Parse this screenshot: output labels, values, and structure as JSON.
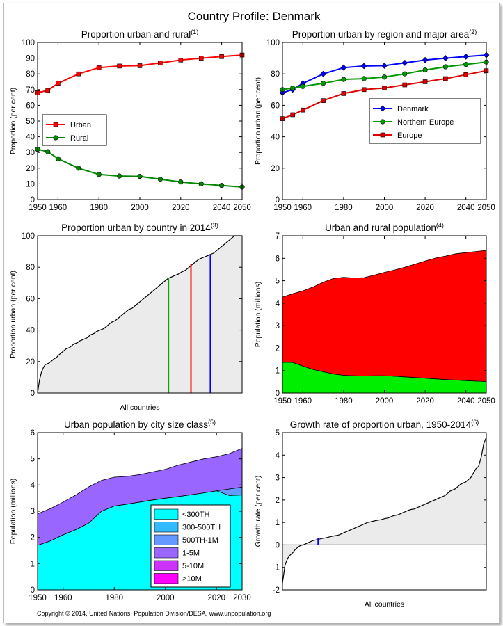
{
  "page": {
    "title": "Country Profile: Denmark",
    "copyright": "Copyright © 2014, United Nations, Population Division/DESA, www.unpopulation.org"
  },
  "chart_data": [
    {
      "id": "c1",
      "type": "line",
      "title": "Proportion urban and rural",
      "footnote": "(1)",
      "ylabel": "Proportion (per cent)",
      "xlabel": "",
      "x": [
        1950,
        1955,
        1960,
        1970,
        1980,
        1990,
        2000,
        2010,
        2020,
        2030,
        2040,
        2050
      ],
      "xlim": [
        1950,
        2050
      ],
      "ylim": [
        0,
        100
      ],
      "xticks": [
        1950,
        1960,
        1980,
        2000,
        2020,
        2040,
        2050
      ],
      "yticks": [
        0,
        10,
        20,
        30,
        40,
        50,
        60,
        70,
        80,
        90,
        100
      ],
      "legend_position": "middle-left",
      "series": [
        {
          "name": "Urban",
          "color": "#ff0000",
          "marker": "square",
          "values": [
            68,
            69.5,
            74,
            80,
            84,
            85,
            85.2,
            87,
            88.8,
            90,
            91,
            92
          ]
        },
        {
          "name": "Rural",
          "color": "#008800",
          "marker": "circle",
          "values": [
            32,
            30.5,
            26,
            20,
            16,
            15,
            14.8,
            13,
            11.2,
            10,
            9,
            8
          ]
        }
      ]
    },
    {
      "id": "c2",
      "type": "line",
      "title": "Proportion urban by region and major area",
      "footnote": "(2)",
      "ylabel": "Proportion urban (per cent)",
      "xlabel": "",
      "x": [
        1950,
        1955,
        1960,
        1970,
        1980,
        1990,
        2000,
        2010,
        2020,
        2030,
        2040,
        2050
      ],
      "xlim": [
        1950,
        2050
      ],
      "ylim": [
        0,
        100
      ],
      "xticks": [
        1950,
        1960,
        1980,
        2000,
        2020,
        2040,
        2050
      ],
      "yticks": [
        0,
        20,
        40,
        60,
        80,
        100
      ],
      "legend_position": "middle-right",
      "series": [
        {
          "name": "Denmark",
          "color": "#0000ff",
          "marker": "diamond",
          "values": [
            68,
            70,
            74,
            80,
            84,
            85,
            85.2,
            87,
            88.8,
            90,
            91,
            92
          ]
        },
        {
          "name": "Northern Europe",
          "color": "#009900",
          "marker": "circle",
          "values": [
            70,
            71,
            72,
            74,
            76.5,
            77,
            78,
            80,
            82.5,
            84.5,
            86,
            87.5
          ]
        },
        {
          "name": "Europe",
          "color": "#dd0000",
          "marker": "square",
          "values": [
            51.5,
            54,
            57,
            63,
            67.5,
            70,
            71,
            73,
            75,
            77,
            79.5,
            82
          ]
        }
      ]
    },
    {
      "id": "c3",
      "type": "area",
      "title": "Proportion urban by country in 2014",
      "footnote": "(3)",
      "ylabel": "Proportion urban (per cent)",
      "xlabel": "All countries",
      "ylim": [
        0,
        100
      ],
      "yticks": [
        0,
        20,
        40,
        60,
        80,
        100
      ],
      "fill": "#ebebeb",
      "values": [
        0,
        8,
        13,
        16,
        18,
        18.5,
        19,
        20,
        21,
        22,
        22.5,
        24,
        25,
        26,
        27,
        28,
        28.5,
        29,
        30,
        31,
        31.5,
        32,
        33,
        33.5,
        34,
        34.5,
        35,
        36,
        37,
        37.5,
        38,
        39,
        39.5,
        40,
        40.5,
        41,
        42,
        43,
        44,
        45,
        45.5,
        46,
        47,
        48,
        49,
        50,
        51,
        52,
        53,
        53.5,
        54,
        55,
        56,
        57,
        58,
        59,
        60,
        61,
        62,
        63,
        64,
        65,
        66,
        67,
        68,
        69,
        70,
        71,
        72,
        73,
        73.5,
        74,
        74.5,
        75,
        75.5,
        76,
        77,
        77.5,
        78,
        79,
        80,
        81,
        82,
        83,
        84,
        85,
        85.5,
        86,
        86.5,
        87,
        87.5,
        88,
        88.5,
        89,
        90,
        91,
        92,
        93,
        94,
        95,
        96,
        97,
        98,
        99,
        100,
        100,
        100,
        100,
        100
      ],
      "markers": [
        {
          "name": "Northern Europe",
          "color": "#00aa00",
          "position": 0.64,
          "value": 73
        },
        {
          "name": "Europe",
          "color": "#ff0000",
          "position": 0.75,
          "value": 82
        },
        {
          "name": "Denmark",
          "color": "#0000ff",
          "position": 0.845,
          "value": 88
        }
      ]
    },
    {
      "id": "c4",
      "type": "area",
      "title": "Urban and rural population",
      "footnote": "(4)",
      "ylabel": "Population (millions)",
      "xlabel": "",
      "x": [
        1950,
        1955,
        1960,
        1965,
        1970,
        1975,
        1980,
        1985,
        1990,
        1995,
        2000,
        2005,
        2010,
        2015,
        2020,
        2025,
        2030,
        2035,
        2040,
        2045,
        2050
      ],
      "xlim": [
        1950,
        2050
      ],
      "ylim": [
        0,
        7
      ],
      "xticks": [
        1950,
        1960,
        1980,
        2000,
        2020,
        2040,
        2050
      ],
      "yticks": [
        0,
        1,
        2,
        3,
        4,
        5,
        6,
        7
      ],
      "series": [
        {
          "name": "Rural",
          "color": "#00ee00",
          "values": [
            1.37,
            1.36,
            1.2,
            1.05,
            0.95,
            0.85,
            0.79,
            0.77,
            0.76,
            0.77,
            0.77,
            0.75,
            0.72,
            0.69,
            0.66,
            0.63,
            0.6,
            0.58,
            0.55,
            0.53,
            0.51
          ]
        },
        {
          "name": "Urban",
          "color": "#ff0000",
          "values": [
            2.9,
            3.06,
            3.35,
            3.67,
            3.98,
            4.25,
            4.36,
            4.35,
            4.38,
            4.48,
            4.6,
            4.73,
            4.88,
            5.05,
            5.22,
            5.38,
            5.5,
            5.62,
            5.7,
            5.77,
            5.84
          ]
        }
      ]
    },
    {
      "id": "c5",
      "type": "area",
      "title": "Urban population by city size class",
      "footnote": "(5)",
      "ylabel": "Population (millions)",
      "xlabel": "",
      "x": [
        1950,
        1955,
        1960,
        1965,
        1970,
        1975,
        1980,
        1985,
        1990,
        1995,
        2000,
        2005,
        2010,
        2015,
        2020,
        2025,
        2030
      ],
      "xlim": [
        1950,
        2030
      ],
      "ylim": [
        0,
        6
      ],
      "xticks": [
        1950,
        1960,
        1980,
        2000,
        2020,
        2030
      ],
      "yticks": [
        0,
        1,
        2,
        3,
        4,
        5,
        6
      ],
      "legend_position": "bottom-right",
      "legend": [
        "<300TH",
        "300-500TH",
        "500TH-1M",
        "1-5M",
        "5-10M",
        ">10M"
      ],
      "legend_colors": [
        "#00ffff",
        "#33bbff",
        "#6699ff",
        "#9966ff",
        "#cc33ff",
        "#ff00ff"
      ],
      "series": [
        {
          "name": "<300TH",
          "color": "#00ffff",
          "values": [
            1.7,
            1.87,
            2.1,
            2.3,
            2.55,
            3.0,
            3.2,
            3.27,
            3.35,
            3.43,
            3.5,
            3.56,
            3.63,
            3.7,
            3.78,
            3.6,
            3.62
          ]
        },
        {
          "name": "500TH-1M",
          "color": "#6699ff",
          "values": [
            0,
            0,
            0,
            0,
            0,
            0,
            0,
            0,
            0,
            0,
            0,
            0,
            0,
            0,
            0,
            0.25,
            0.3
          ]
        },
        {
          "name": "1-5M",
          "color": "#9966ff",
          "values": [
            1.2,
            1.23,
            1.25,
            1.32,
            1.38,
            1.18,
            1.1,
            1.06,
            1.05,
            1.07,
            1.1,
            1.2,
            1.25,
            1.3,
            1.3,
            1.35,
            1.48
          ]
        }
      ]
    },
    {
      "id": "c6",
      "type": "area",
      "title": "Growth rate of proportion urban, 1950-2014",
      "footnote": "(6)",
      "ylabel": "Growth rate (per cent)",
      "xlabel": "All countries",
      "ylim": [
        -2,
        5
      ],
      "yticks": [
        -2,
        -1,
        0,
        1,
        2,
        3,
        4,
        5
      ],
      "fill": "#ebebeb",
      "values": [
        -1.7,
        -0.9,
        -0.6,
        -0.45,
        -0.35,
        -0.2,
        -0.1,
        -0.02,
        0,
        0.05,
        0.1,
        0.15,
        0.2,
        0.22,
        0.25,
        0.28,
        0.3,
        0.32,
        0.35,
        0.38,
        0.4,
        0.42,
        0.45,
        0.5,
        0.55,
        0.6,
        0.65,
        0.7,
        0.75,
        0.8,
        0.85,
        0.9,
        0.95,
        1.0,
        1.02,
        1.05,
        1.08,
        1.1,
        1.12,
        1.15,
        1.18,
        1.2,
        1.25,
        1.3,
        1.32,
        1.35,
        1.4,
        1.45,
        1.5,
        1.55,
        1.58,
        1.6,
        1.65,
        1.7,
        1.75,
        1.8,
        1.85,
        1.9,
        1.95,
        2.0,
        2.05,
        2.1,
        2.15,
        2.2,
        2.3,
        2.4,
        2.45,
        2.5,
        2.6,
        2.7,
        2.75,
        2.8,
        2.9,
        3.0,
        3.2,
        3.4,
        3.5,
        3.9,
        4.5,
        4.8
      ],
      "markers": [
        {
          "name": "Denmark",
          "color": "#0000ff",
          "position": 0.175,
          "value": 0.3
        }
      ]
    }
  ]
}
